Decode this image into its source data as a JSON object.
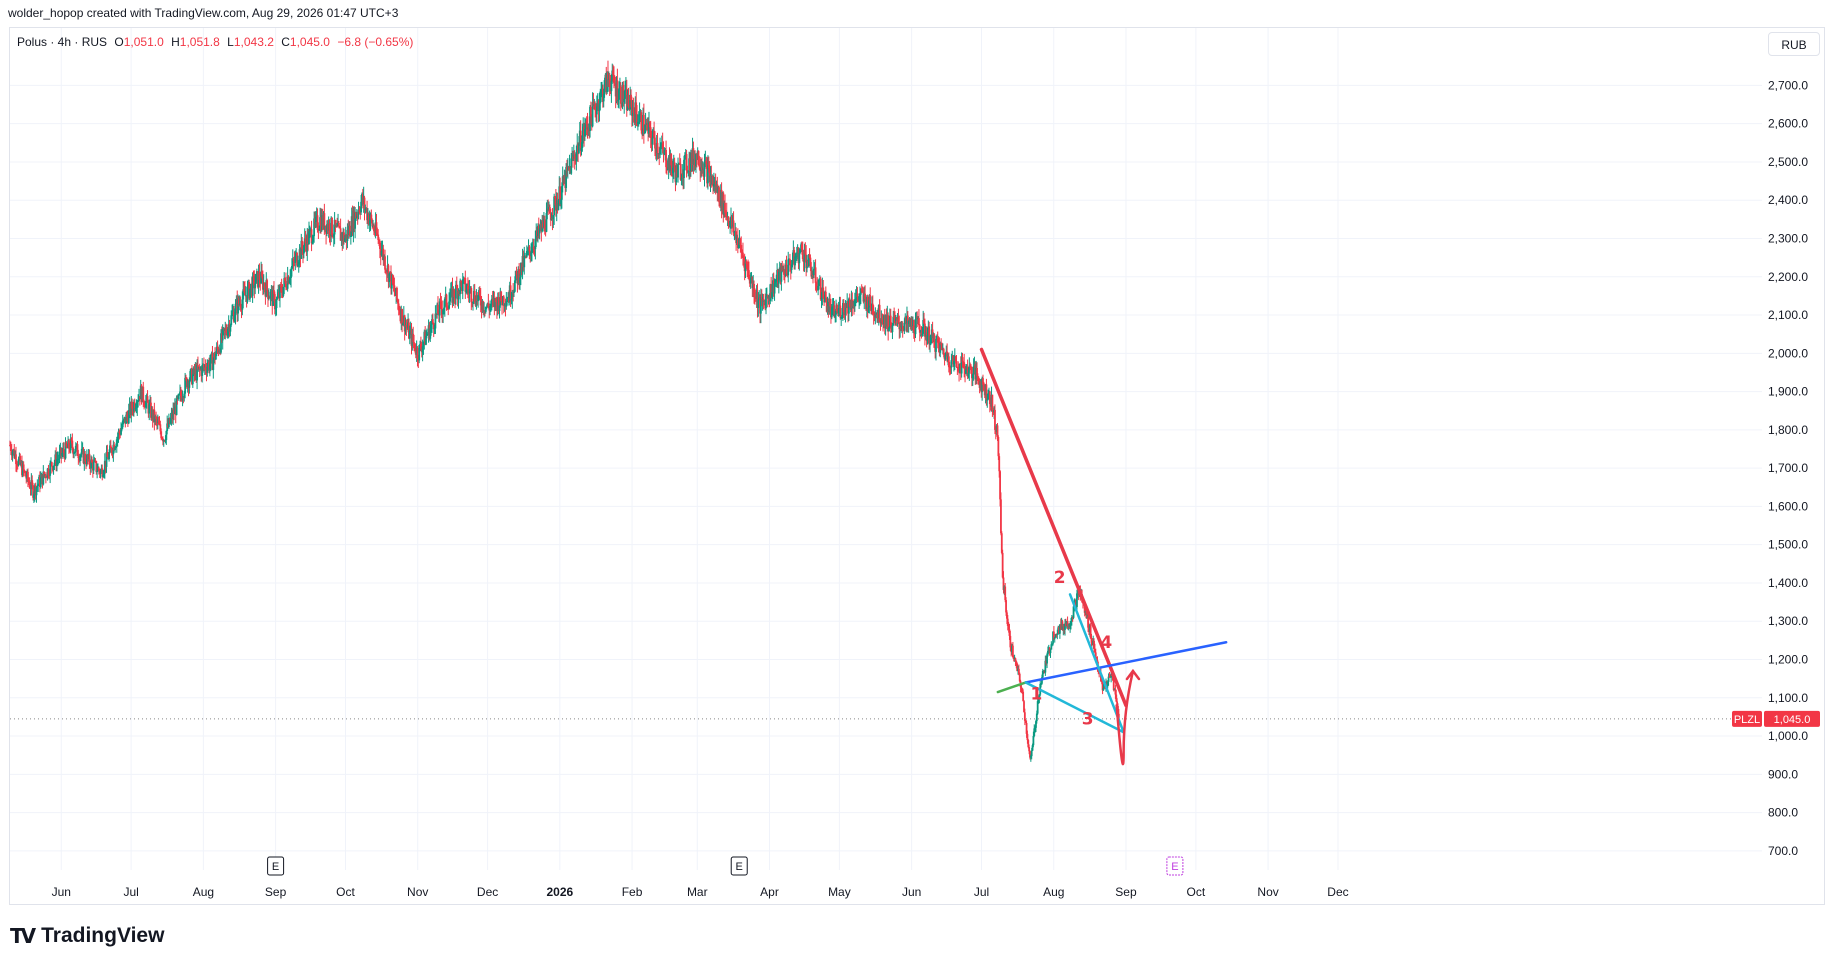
{
  "header": {
    "credit": "wolder_hopop created with TradingView.com, Aug 29, 2026 01:47 UTC+3"
  },
  "legend": {
    "symbol": "Polus · 4h · RUS",
    "open_label": "O",
    "open": "1,051.0",
    "high_label": "H",
    "high": "1,051.8",
    "low_label": "L",
    "low": "1,043.2",
    "close_label": "C",
    "close": "1,045.0",
    "change": "−6.8 (−0.65%)"
  },
  "currency_button": "RUB",
  "footer": {
    "brand": "TradingView"
  },
  "colors": {
    "up": "#089981",
    "down": "#f23645",
    "grid": "#f0f3fa",
    "trend_red": "#e8394a",
    "trend_blue": "#2962ff",
    "trend_cyan": "#22b8d8",
    "trend_green": "#4caf50",
    "price_tag": "#f23645",
    "earnings": "#c040e0"
  },
  "chart_data": {
    "type": "candlestick",
    "timeframe": "4h",
    "ylim": [
      650,
      2850
    ],
    "y_ticks": [
      {
        "value": 700,
        "label": "700.0"
      },
      {
        "value": 800,
        "label": "800.0"
      },
      {
        "value": 900,
        "label": "900.0"
      },
      {
        "value": 1000,
        "label": "1,000.0"
      },
      {
        "value": 1100,
        "label": "1,100.0"
      },
      {
        "value": 1200,
        "label": "1,200.0"
      },
      {
        "value": 1300,
        "label": "1,300.0"
      },
      {
        "value": 1400,
        "label": "1,400.0"
      },
      {
        "value": 1500,
        "label": "1,500.0"
      },
      {
        "value": 1600,
        "label": "1,600.0"
      },
      {
        "value": 1700,
        "label": "1,700.0"
      },
      {
        "value": 1800,
        "label": "1,800.0"
      },
      {
        "value": 1900,
        "label": "1,900.0"
      },
      {
        "value": 2000,
        "label": "2,000.0"
      },
      {
        "value": 2100,
        "label": "2,100.0"
      },
      {
        "value": 2200,
        "label": "2,200.0"
      },
      {
        "value": 2300,
        "label": "2,300.0"
      },
      {
        "value": 2400,
        "label": "2,400.0"
      },
      {
        "value": 2500,
        "label": "2,500.0"
      },
      {
        "value": 2600,
        "label": "2,600.0"
      },
      {
        "value": 2700,
        "label": "2,700.0"
      }
    ],
    "x_ticks": [
      {
        "label": "Jun",
        "date": "2025-06-01"
      },
      {
        "label": "Jul",
        "date": "2025-07-01"
      },
      {
        "label": "Aug",
        "date": "2025-08-01"
      },
      {
        "label": "Sep",
        "date": "2025-09-01"
      },
      {
        "label": "Oct",
        "date": "2025-10-01"
      },
      {
        "label": "Nov",
        "date": "2025-11-01"
      },
      {
        "label": "Dec",
        "date": "2025-12-01"
      },
      {
        "label": "2026",
        "date": "2026-01-01",
        "bold": true
      },
      {
        "label": "Feb",
        "date": "2026-02-01"
      },
      {
        "label": "Mar",
        "date": "2026-03-01"
      },
      {
        "label": "Apr",
        "date": "2026-04-01"
      },
      {
        "label": "May",
        "date": "2026-05-01"
      },
      {
        "label": "Jun",
        "date": "2026-06-01"
      },
      {
        "label": "Jul",
        "date": "2026-07-01"
      },
      {
        "label": "Aug",
        "date": "2026-08-01"
      },
      {
        "label": "Sep",
        "date": "2026-09-01"
      },
      {
        "label": "Oct",
        "date": "2026-10-01"
      },
      {
        "label": "Nov",
        "date": "2026-11-01"
      },
      {
        "label": "Dec",
        "date": "2026-12-01"
      }
    ],
    "x_range": [
      "2025-05-10",
      "2027-06-01"
    ],
    "price_path": [
      {
        "date": "2025-05-10",
        "price": 1760
      },
      {
        "date": "2025-05-20",
        "price": 1640
      },
      {
        "date": "2025-05-28",
        "price": 1710
      },
      {
        "date": "2025-06-05",
        "price": 1760
      },
      {
        "date": "2025-06-18",
        "price": 1690
      },
      {
        "date": "2025-06-28",
        "price": 1820
      },
      {
        "date": "2025-07-05",
        "price": 1900
      },
      {
        "date": "2025-07-15",
        "price": 1780
      },
      {
        "date": "2025-07-25",
        "price": 1930
      },
      {
        "date": "2025-08-05",
        "price": 1980
      },
      {
        "date": "2025-08-15",
        "price": 2120
      },
      {
        "date": "2025-08-25",
        "price": 2200
      },
      {
        "date": "2025-09-01",
        "price": 2130
      },
      {
        "date": "2025-09-10",
        "price": 2250
      },
      {
        "date": "2025-09-20",
        "price": 2350
      },
      {
        "date": "2025-10-01",
        "price": 2300
      },
      {
        "date": "2025-10-08",
        "price": 2400
      },
      {
        "date": "2025-10-15",
        "price": 2300
      },
      {
        "date": "2025-10-25",
        "price": 2100
      },
      {
        "date": "2025-11-01",
        "price": 2000
      },
      {
        "date": "2025-11-10",
        "price": 2110
      },
      {
        "date": "2025-11-20",
        "price": 2180
      },
      {
        "date": "2025-12-01",
        "price": 2120
      },
      {
        "date": "2025-12-10",
        "price": 2150
      },
      {
        "date": "2025-12-20",
        "price": 2280
      },
      {
        "date": "2025-12-31",
        "price": 2400
      },
      {
        "date": "2026-01-10",
        "price": 2560
      },
      {
        "date": "2026-01-22",
        "price": 2720
      },
      {
        "date": "2026-02-01",
        "price": 2640
      },
      {
        "date": "2026-02-10",
        "price": 2560
      },
      {
        "date": "2026-02-20",
        "price": 2470
      },
      {
        "date": "2026-03-01",
        "price": 2520
      },
      {
        "date": "2026-03-10",
        "price": 2420
      },
      {
        "date": "2026-03-18",
        "price": 2300
      },
      {
        "date": "2026-03-28",
        "price": 2120
      },
      {
        "date": "2026-04-05",
        "price": 2200
      },
      {
        "date": "2026-04-15",
        "price": 2270
      },
      {
        "date": "2026-04-28",
        "price": 2100
      },
      {
        "date": "2026-05-10",
        "price": 2150
      },
      {
        "date": "2026-05-22",
        "price": 2080
      },
      {
        "date": "2026-06-05",
        "price": 2070
      },
      {
        "date": "2026-06-18",
        "price": 1980
      },
      {
        "date": "2026-06-28",
        "price": 1950
      },
      {
        "date": "2026-07-05",
        "price": 1880
      },
      {
        "date": "2026-07-08",
        "price": 1780
      },
      {
        "date": "2026-07-10",
        "price": 1420
      },
      {
        "date": "2026-07-13",
        "price": 1250
      },
      {
        "date": "2026-07-18",
        "price": 1130
      },
      {
        "date": "2026-07-22",
        "price": 930
      },
      {
        "date": "2026-07-26",
        "price": 1130
      },
      {
        "date": "2026-08-01",
        "price": 1270
      },
      {
        "date": "2026-08-08",
        "price": 1300
      },
      {
        "date": "2026-08-12",
        "price": 1380
      },
      {
        "date": "2026-08-18",
        "price": 1240
      },
      {
        "date": "2026-08-22",
        "price": 1120
      },
      {
        "date": "2026-08-26",
        "price": 1160
      },
      {
        "date": "2026-08-29",
        "price": 1045
      }
    ],
    "last_price": {
      "label": "1,045.0",
      "value": 1045,
      "symbol": "PLZL"
    },
    "drawings": [
      {
        "name": "red-downtrend-line",
        "color": "#e8394a",
        "from": {
          "date": "2026-07-01",
          "price": 2010
        },
        "to": {
          "date": "2026-09-01",
          "price": 1080
        }
      },
      {
        "name": "blue-trend-line",
        "color": "#2962ff",
        "from": {
          "date": "2026-07-20",
          "price": 1140
        },
        "to": {
          "date": "2026-10-14",
          "price": 1245
        }
      },
      {
        "name": "green-trend-line",
        "color": "#4caf50",
        "from": {
          "date": "2026-07-08",
          "price": 1115
        },
        "to": {
          "date": "2026-07-20",
          "price": 1140
        }
      },
      {
        "name": "cyan-lower-line",
        "color": "#22b8d8",
        "from": {
          "date": "2026-07-20",
          "price": 1140
        },
        "to": {
          "date": "2026-08-31",
          "price": 1010
        }
      },
      {
        "name": "cyan-upper-line",
        "color": "#22b8d8",
        "from": {
          "date": "2026-08-08",
          "price": 1370
        },
        "to": {
          "date": "2026-08-31",
          "price": 1010
        }
      }
    ],
    "wave_labels": [
      {
        "text": "1",
        "date": "2026-07-22",
        "price": 1095,
        "color": "#e8394a"
      },
      {
        "text": "2",
        "date": "2026-08-01",
        "price": 1400,
        "color": "#e8394a"
      },
      {
        "text": "3",
        "date": "2026-08-13",
        "price": 1030,
        "color": "#e8394a"
      },
      {
        "text": "4",
        "date": "2026-08-21",
        "price": 1230,
        "color": "#e8394a"
      }
    ],
    "hand_arrow": [
      {
        "date": "2026-08-28",
        "price": 1080
      },
      {
        "date": "2026-08-31",
        "price": 960
      },
      {
        "date": "2026-09-03",
        "price": 1080
      },
      {
        "date": "2026-09-04",
        "price": 1170
      }
    ],
    "earnings_markers": [
      {
        "label": "E",
        "date": "2025-09-01",
        "style": "past"
      },
      {
        "label": "E",
        "date": "2026-03-19",
        "style": "past"
      },
      {
        "label": "E",
        "date": "2026-09-22",
        "style": "upcoming"
      }
    ]
  }
}
